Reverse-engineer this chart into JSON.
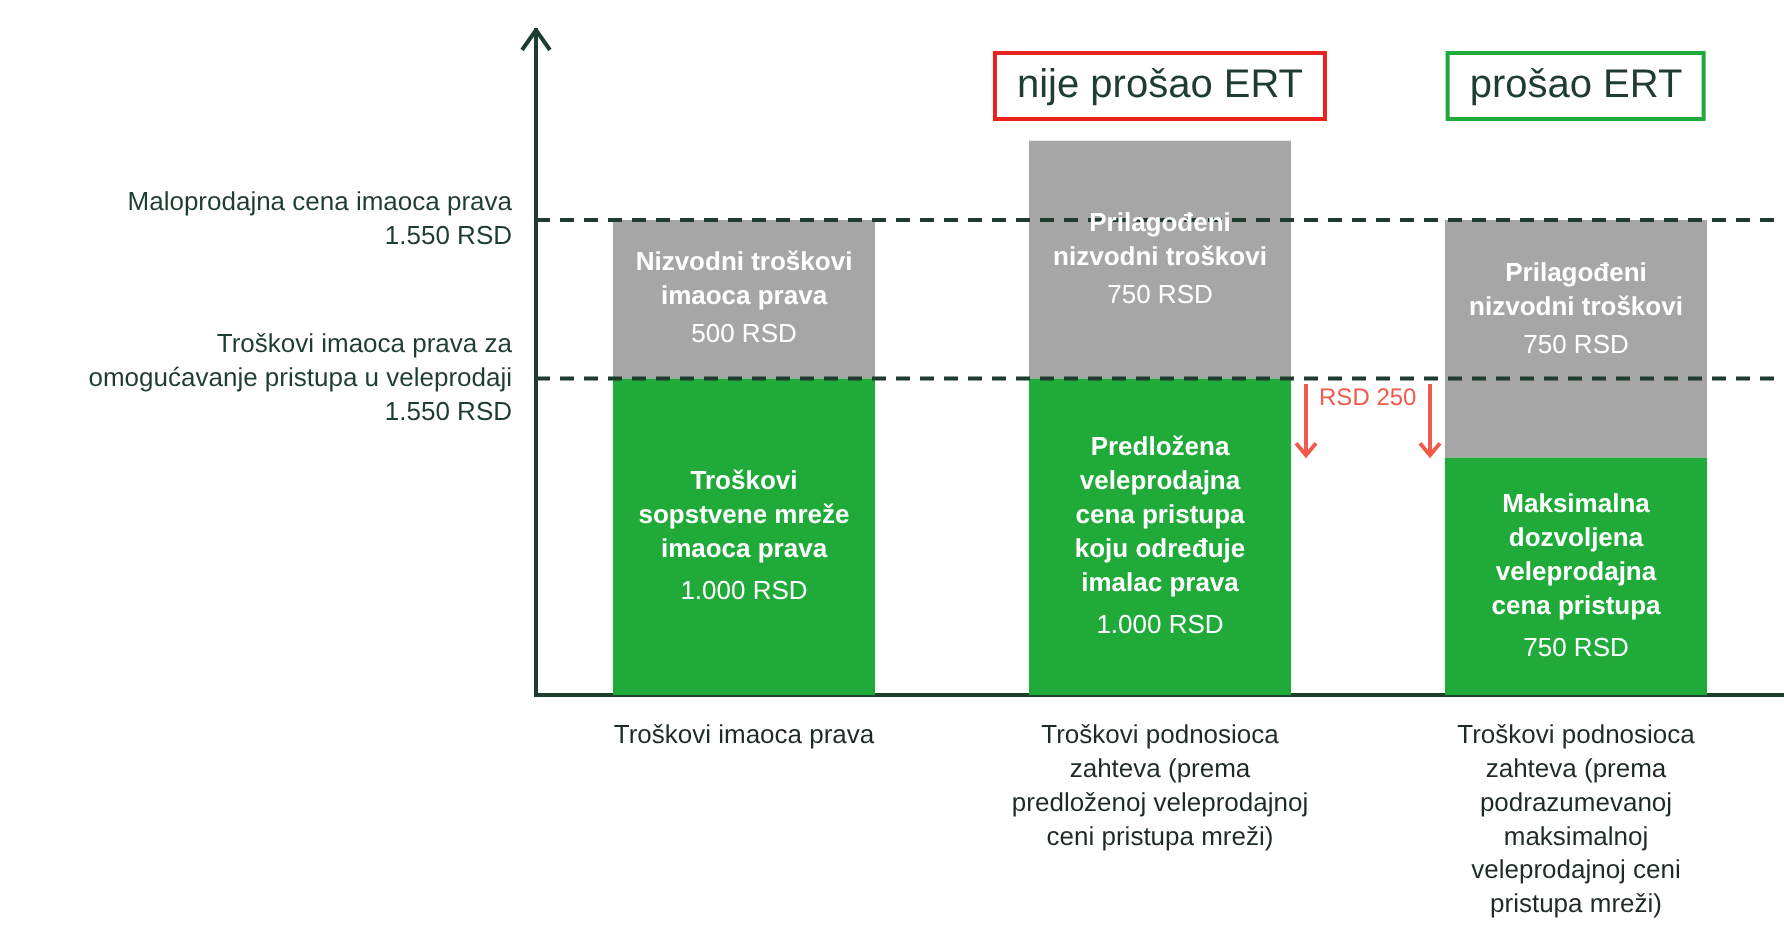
{
  "chart_data": {
    "type": "bar",
    "stacked": true,
    "categories": [
      "Troškovi imaoca prava",
      "Troškovi podnosioca zahteva (prema predloženoj veleprodajnoj ceni pristupa mreži)",
      "Troškovi podnosioca zahteva (prema podrazumevanoj maksimalnoj veleprodajnoj ceni pristupa mreži)"
    ],
    "series": [
      {
        "color": "#1faa3a",
        "values": [
          1000,
          1000,
          750
        ],
        "value_labels": [
          "Troškovi sopstvene mreže imaoca prava\n1.000 RSD",
          "Predložena veleprodajna cena pristupa koju određuje imalac prava\n1.000 RSD",
          "Maksimalna dozvoljena veleprodajna cena pristupa\n750 RSD"
        ]
      },
      {
        "color": "#a6a6a6",
        "values": [
          500,
          750,
          750
        ],
        "value_labels": [
          "Nizvodni troškovi imaoca prava\n500 RSD",
          "Prilagođeni nizvodni troškovi\n750 RSD",
          "Prilagođeni nizvodni troškovi\n750 RSD"
        ]
      }
    ],
    "ylim": [
      0,
      2100
    ],
    "tick_labels": "x",
    "grid": false,
    "legend": false,
    "ref_lines": [
      {
        "axis": "y",
        "value": 1500,
        "label": "Maloprodajna cena imaoca prava 1.550 RSD",
        "line_style": "dashed"
      },
      {
        "axis": "y",
        "value": 1000,
        "label": "Troškovi imaoca prava za omogućavanje pristupa u veleprodaji 1.550 RSD",
        "line_style": "dashed"
      }
    ],
    "annotations": [
      "nije prošao ERT",
      "prošao ERT",
      "RSD 250"
    ]
  }
}
